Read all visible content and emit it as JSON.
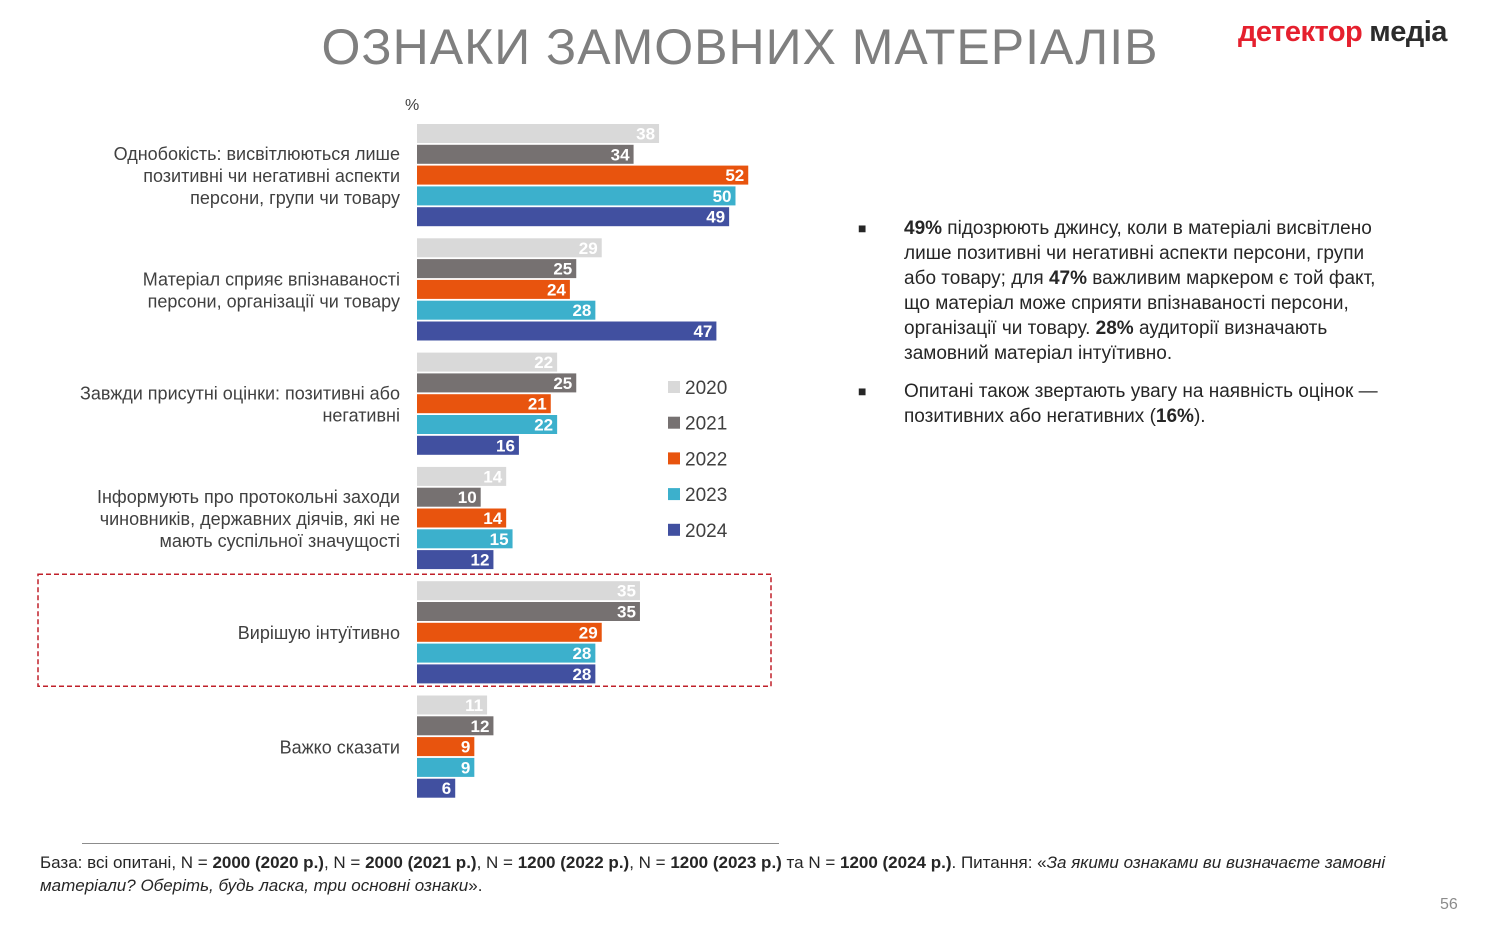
{
  "title": "ОЗНАКИ ЗАМОВНИХ МАТЕРІАЛІВ",
  "logo": {
    "part1": "детектор",
    "part2": "медіа"
  },
  "chart_data": {
    "type": "bar",
    "orientation": "horizontal",
    "unit_label": "%",
    "categories": [
      [
        "Однобокість: висвітлюються лише",
        "позитивні чи негативні аспекти",
        "персони, групи чи товару"
      ],
      [
        "Матеріал сприяє впізнаваності",
        "персони, організації чи товару"
      ],
      [
        "Завжди присутні оцінки: позитивні або",
        "негативні"
      ],
      [
        "Інформують про протокольні заходи",
        "чиновників, державних діячів, які не",
        "мають суспільної значущості"
      ],
      [
        "Вирішую інтуїтивно"
      ],
      [
        "Важко сказати"
      ]
    ],
    "highlighted_category_index": 4,
    "series": [
      {
        "name": "2020",
        "color": "#d9d9d9",
        "values": [
          38,
          29,
          22,
          14,
          35,
          11
        ]
      },
      {
        "name": "2021",
        "color": "#767171",
        "values": [
          34,
          25,
          25,
          10,
          35,
          12
        ]
      },
      {
        "name": "2022",
        "color": "#e8540e",
        "values": [
          52,
          24,
          21,
          14,
          29,
          9
        ]
      },
      {
        "name": "2023",
        "color": "#3cb0cc",
        "values": [
          50,
          28,
          22,
          15,
          28,
          9
        ]
      },
      {
        "name": "2024",
        "color": "#4150a0",
        "values": [
          49,
          47,
          16,
          12,
          28,
          6
        ]
      }
    ],
    "legend": "right-of-bars",
    "grid": false
  },
  "bullets": [
    [
      {
        "b": "49%"
      },
      {
        "t": " підозрюють джинсу, коли в матеріалі висвітлено лише позитивні чи негативні аспекти персони, групи або товару; для "
      },
      {
        "b": "47%"
      },
      {
        "t": " важливим маркером є той факт, що матеріал може сприяти впізнаваності персони, організації чи товару. "
      },
      {
        "b": "28%"
      },
      {
        "t": " аудиторії  визначають замовний матеріал інтуїтивно."
      }
    ],
    [
      {
        "t": "Опитані також звертають увагу на наявність оцінок — позитивних або негативних ("
      },
      {
        "b": "16%"
      },
      {
        "t": ")."
      }
    ]
  ],
  "footer": [
    {
      "t": "База: всі опитані, N = "
    },
    {
      "b": "2000 (2020 р.)"
    },
    {
      "t": ", N = "
    },
    {
      "b": "2000 (2021 р.)"
    },
    {
      "t": ", N = "
    },
    {
      "b": "1200 (2022 р.)"
    },
    {
      "t": ", N = "
    },
    {
      "b": "1200 (2023 р.)"
    },
    {
      "t": " та N = "
    },
    {
      "b": "1200 (2024 р.)"
    },
    {
      "t": ". Питання: «"
    },
    {
      "i": "За якими ознаками ви визначаєте замовні матеріали? Оберіть, будь ласка, три основні ознаки"
    },
    {
      "t": "»."
    }
  ],
  "page_number": "56"
}
